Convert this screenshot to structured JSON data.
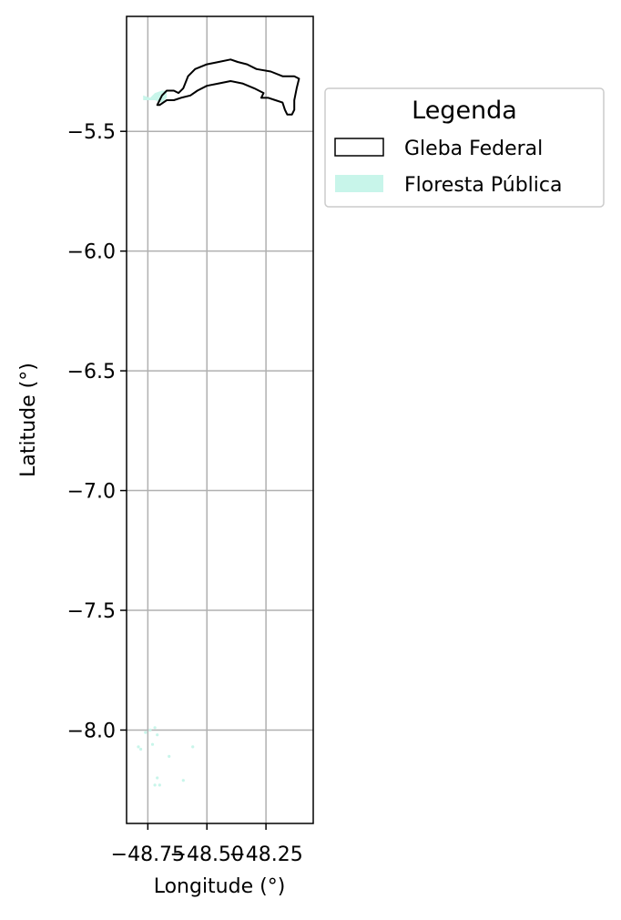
{
  "chart_data": {
    "type": "map",
    "xlabel": "Longitude (°)",
    "ylabel": "Latitude (°)",
    "xlim": [
      -48.84,
      -48.05
    ],
    "ylim": [
      -8.39,
      -5.02
    ],
    "x_ticks": [
      {
        "value": -48.75,
        "label": "−48.75"
      },
      {
        "value": -48.5,
        "label": "−48.50"
      },
      {
        "value": -48.25,
        "label": "−48.25"
      }
    ],
    "y_ticks": [
      {
        "value": -5.5,
        "label": "−5.5"
      },
      {
        "value": -6.0,
        "label": "−6.0"
      },
      {
        "value": -6.5,
        "label": "−6.5"
      },
      {
        "value": -7.0,
        "label": "−7.0"
      },
      {
        "value": -7.5,
        "label": "−7.5"
      },
      {
        "value": -8.0,
        "label": "−8.0"
      }
    ],
    "grid": true,
    "legend": {
      "title": "Legenda",
      "placement": "outside-top-right",
      "entries": [
        {
          "label": "Gleba Federal",
          "style": "outline",
          "edge_color": "#000000",
          "fill_color": "none"
        },
        {
          "label": "Floresta Pública",
          "style": "fill",
          "edge_color": "none",
          "fill_color": "#c8f5ea"
        }
      ]
    },
    "layers": [
      {
        "name": "Gleba Federal",
        "kind": "outline",
        "edge_color": "#000000",
        "polygons": [
          [
            [
              -48.71,
              -5.39
            ],
            [
              -48.69,
              -5.35
            ],
            [
              -48.67,
              -5.33
            ],
            [
              -48.64,
              -5.33
            ],
            [
              -48.62,
              -5.34
            ],
            [
              -48.6,
              -5.32
            ],
            [
              -48.58,
              -5.27
            ],
            [
              -48.55,
              -5.24
            ],
            [
              -48.5,
              -5.22
            ],
            [
              -48.45,
              -5.21
            ],
            [
              -48.4,
              -5.2
            ],
            [
              -48.37,
              -5.21
            ],
            [
              -48.33,
              -5.22
            ],
            [
              -48.29,
              -5.24
            ],
            [
              -48.23,
              -5.25
            ],
            [
              -48.18,
              -5.27
            ],
            [
              -48.13,
              -5.27
            ],
            [
              -48.11,
              -5.28
            ],
            [
              -48.12,
              -5.32
            ],
            [
              -48.13,
              -5.37
            ],
            [
              -48.13,
              -5.41
            ],
            [
              -48.14,
              -5.43
            ],
            [
              -48.16,
              -5.43
            ],
            [
              -48.17,
              -5.41
            ],
            [
              -48.18,
              -5.38
            ],
            [
              -48.21,
              -5.37
            ],
            [
              -48.24,
              -5.36
            ],
            [
              -48.27,
              -5.36
            ],
            [
              -48.26,
              -5.34
            ],
            [
              -48.3,
              -5.32
            ],
            [
              -48.35,
              -5.3
            ],
            [
              -48.4,
              -5.29
            ],
            [
              -48.45,
              -5.3
            ],
            [
              -48.5,
              -5.31
            ],
            [
              -48.54,
              -5.33
            ],
            [
              -48.57,
              -5.35
            ],
            [
              -48.61,
              -5.36
            ],
            [
              -48.64,
              -5.37
            ],
            [
              -48.67,
              -5.37
            ],
            [
              -48.7,
              -5.39
            ],
            [
              -48.71,
              -5.39
            ]
          ]
        ]
      },
      {
        "name": "Floresta Pública",
        "kind": "fill",
        "fill_color": "#c8f5ea",
        "polygons": [
          [
            [
              -48.77,
              -5.35
            ],
            [
              -48.74,
              -5.36
            ],
            [
              -48.72,
              -5.34
            ],
            [
              -48.69,
              -5.33
            ],
            [
              -48.67,
              -5.33
            ],
            [
              -48.67,
              -5.36
            ],
            [
              -48.69,
              -5.38
            ],
            [
              -48.72,
              -5.37
            ],
            [
              -48.75,
              -5.37
            ],
            [
              -48.77,
              -5.37
            ],
            [
              -48.77,
              -5.35
            ]
          ]
        ],
        "points": [
          [
            -48.74,
            -8.0
          ],
          [
            -48.72,
            -7.99
          ],
          [
            -48.76,
            -8.01
          ],
          [
            -48.71,
            -8.02
          ],
          [
            -48.79,
            -8.07
          ],
          [
            -48.78,
            -8.08
          ],
          [
            -48.71,
            -8.2
          ],
          [
            -48.72,
            -8.23
          ],
          [
            -48.7,
            -8.23
          ],
          [
            -48.66,
            -8.11
          ],
          [
            -48.6,
            -8.21
          ],
          [
            -48.56,
            -8.07
          ],
          [
            -48.73,
            -8.06
          ]
        ]
      }
    ]
  }
}
